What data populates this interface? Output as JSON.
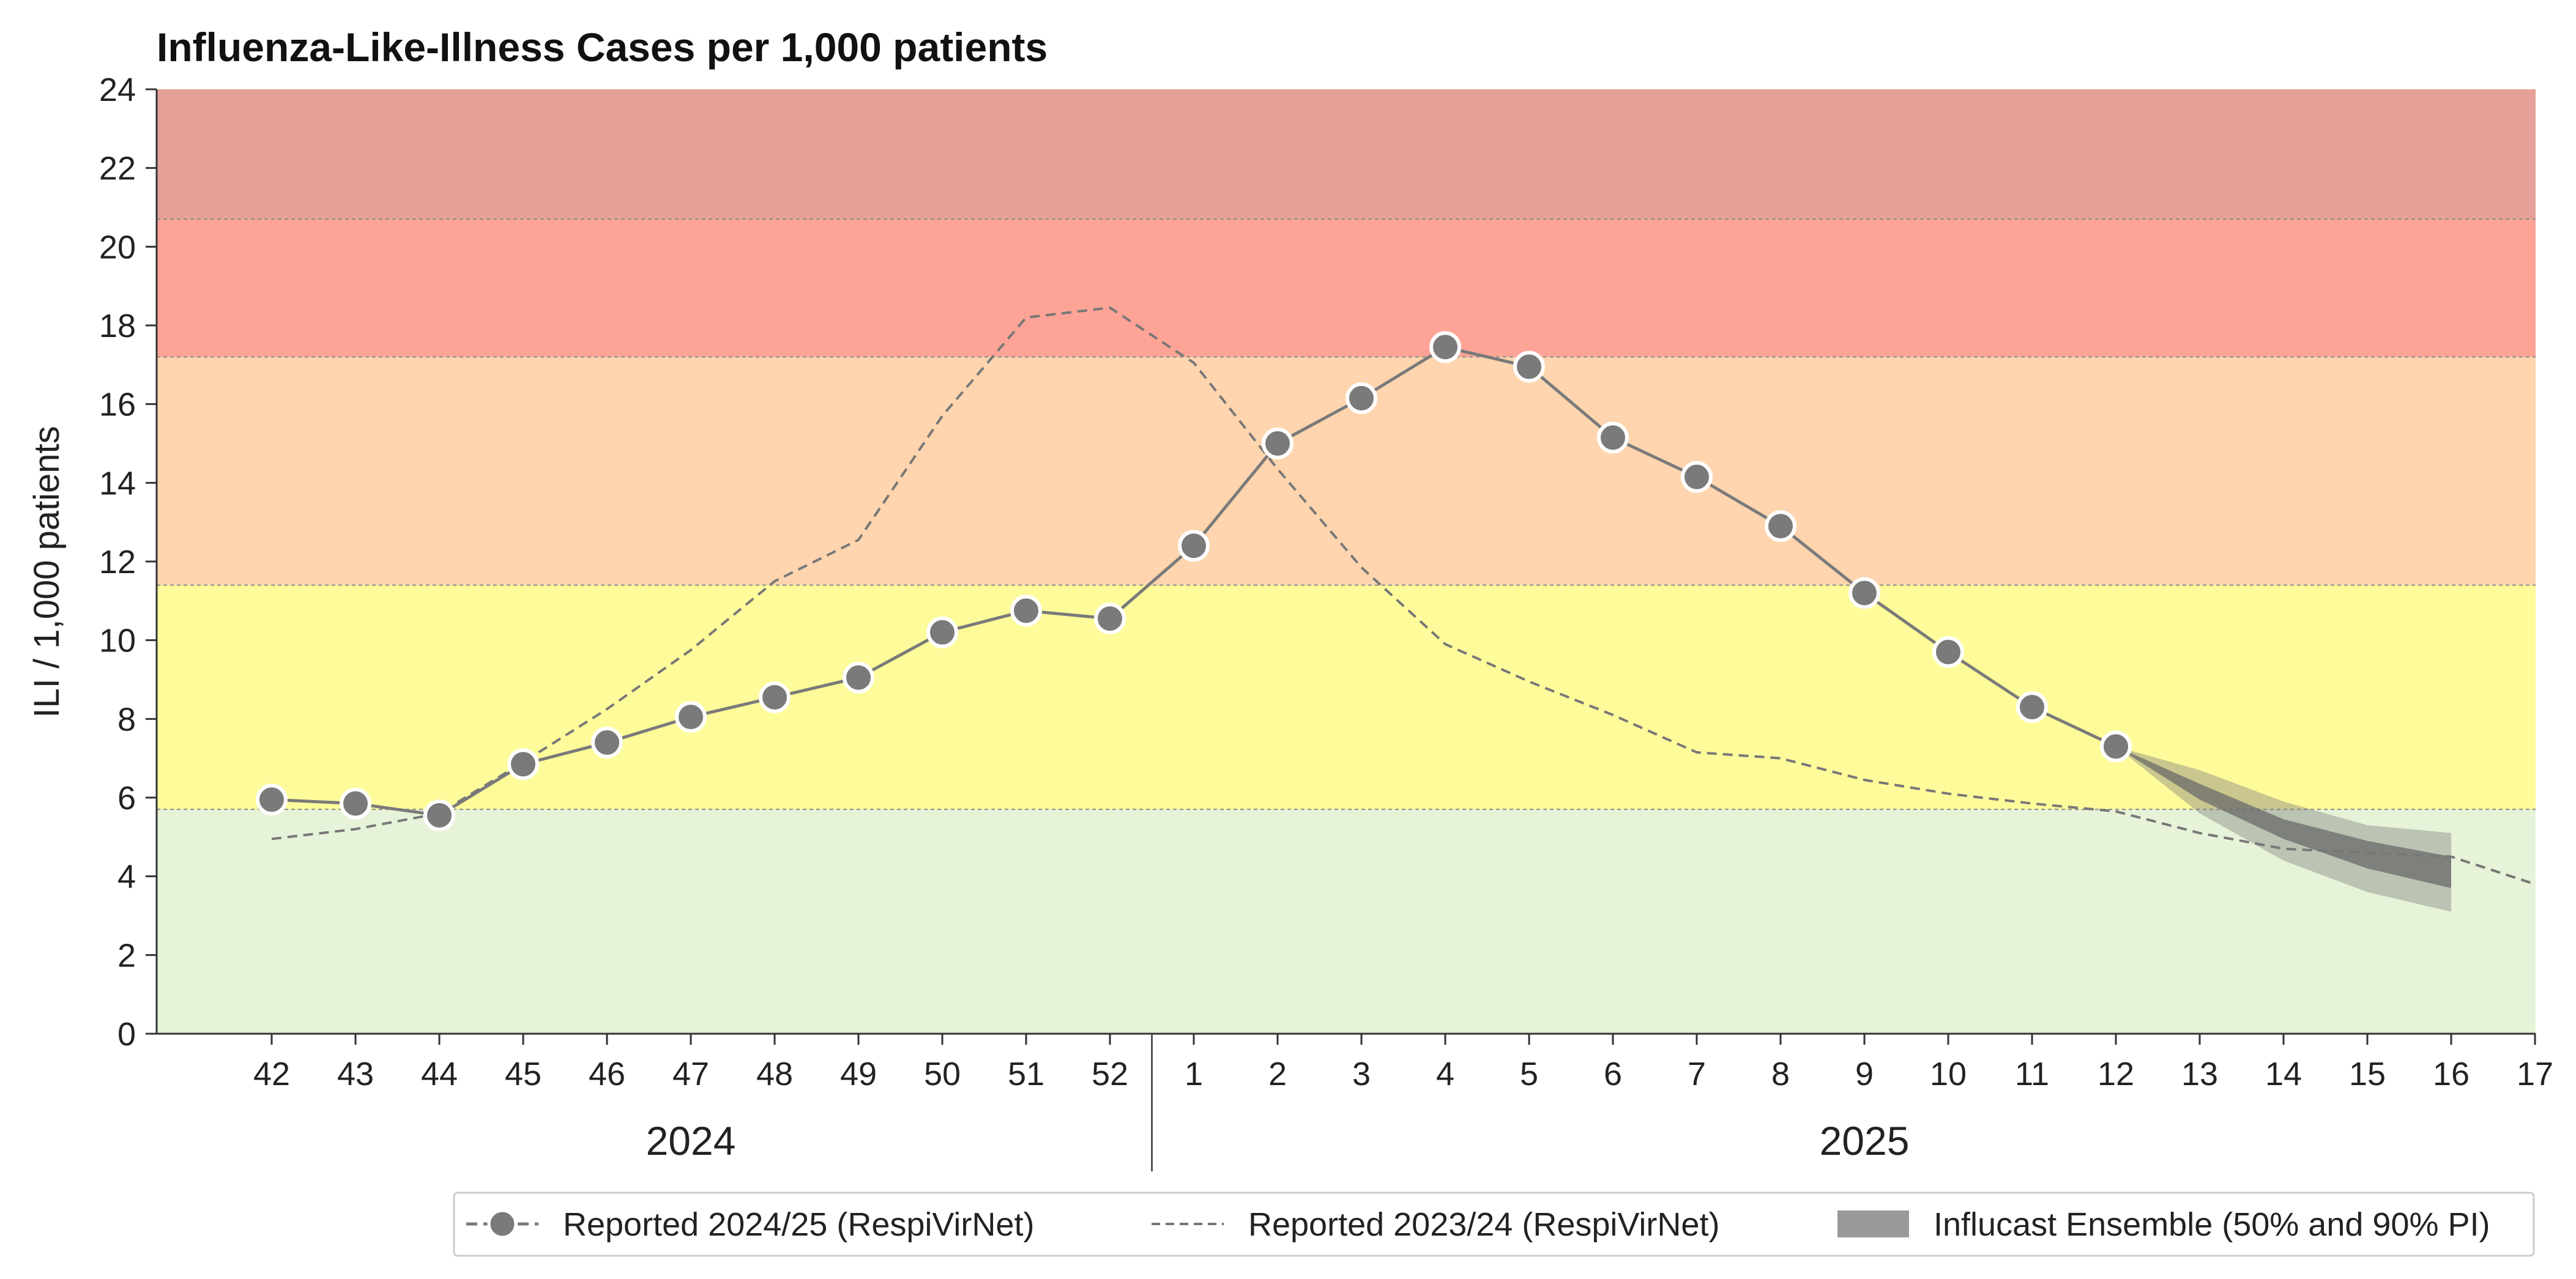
{
  "chart_data": {
    "type": "line",
    "title": "Influenza-Like-Illness Cases per 1,000 patients",
    "ylabel": "ILI / 1,000 patients",
    "xlabel": "",
    "ylim": [
      0,
      24
    ],
    "yticks": [
      0,
      2,
      4,
      6,
      8,
      10,
      12,
      14,
      16,
      18,
      20,
      22,
      24
    ],
    "x": [
      "42",
      "43",
      "44",
      "45",
      "46",
      "47",
      "48",
      "49",
      "50",
      "51",
      "52",
      "1",
      "2",
      "3",
      "4",
      "5",
      "6",
      "7",
      "8",
      "9",
      "10",
      "11",
      "12",
      "13",
      "14",
      "15",
      "16",
      "17"
    ],
    "year_labels": [
      {
        "label": "2024",
        "weeks": [
          "42",
          "52"
        ]
      },
      {
        "label": "2025",
        "weeks": [
          "1",
          "17"
        ]
      }
    ],
    "intensity_bands": [
      {
        "from": 0,
        "to": 5.7,
        "color": "#e7f3d8"
      },
      {
        "from": 5.7,
        "to": 11.4,
        "color": "#fefb9a"
      },
      {
        "from": 11.4,
        "to": 17.2,
        "color": "#fed5ae"
      },
      {
        "from": 17.2,
        "to": 20.7,
        "color": "#fea496"
      },
      {
        "from": 20.7,
        "to": 24,
        "color": "#e5a197"
      }
    ],
    "series": [
      {
        "name": "Reported 2024/25 (RespiVirNet)",
        "style": "line-markers",
        "color": "#7a7a7a",
        "x": [
          "42",
          "43",
          "44",
          "45",
          "46",
          "47",
          "48",
          "49",
          "50",
          "51",
          "52",
          "1",
          "2",
          "3",
          "4",
          "5",
          "6",
          "7",
          "8",
          "9",
          "10",
          "11",
          "12"
        ],
        "values": [
          5.95,
          5.85,
          5.55,
          6.85,
          7.4,
          8.05,
          8.55,
          9.05,
          10.2,
          10.75,
          10.55,
          12.4,
          15.0,
          16.15,
          17.45,
          16.95,
          15.15,
          14.15,
          12.9,
          11.2,
          9.7,
          8.3,
          7.3
        ]
      },
      {
        "name": "Reported 2023/24 (RespiVirNet)",
        "style": "dashed",
        "color": "#777777",
        "x": [
          "42",
          "43",
          "44",
          "45",
          "46",
          "47",
          "48",
          "49",
          "50",
          "51",
          "52",
          "1",
          "2",
          "3",
          "4",
          "5",
          "6",
          "7",
          "8",
          "9",
          "10",
          "11",
          "12",
          "13",
          "14",
          "15",
          "16",
          "17"
        ],
        "values": [
          4.95,
          5.2,
          5.6,
          6.9,
          8.25,
          9.75,
          11.5,
          12.55,
          15.7,
          18.2,
          18.45,
          17.05,
          14.35,
          11.85,
          9.9,
          8.95,
          8.1,
          7.15,
          7.0,
          6.45,
          6.1,
          5.85,
          5.65,
          5.1,
          4.7,
          4.6,
          4.5,
          3.8
        ]
      },
      {
        "name": "Influcast Ensemble (50% and 90% PI)",
        "style": "band",
        "color": "#7a7a7a",
        "x": [
          "12",
          "13",
          "14",
          "15",
          "16"
        ],
        "pi90_lower": [
          7.3,
          5.6,
          4.4,
          3.6,
          3.1
        ],
        "pi90_upper": [
          7.3,
          6.7,
          5.9,
          5.3,
          5.1
        ],
        "pi50_lower": [
          7.3,
          5.95,
          4.95,
          4.2,
          3.7
        ],
        "pi50_upper": [
          7.3,
          6.35,
          5.45,
          4.9,
          4.5
        ]
      }
    ],
    "legend_position": "bottom-right",
    "grid": false
  }
}
